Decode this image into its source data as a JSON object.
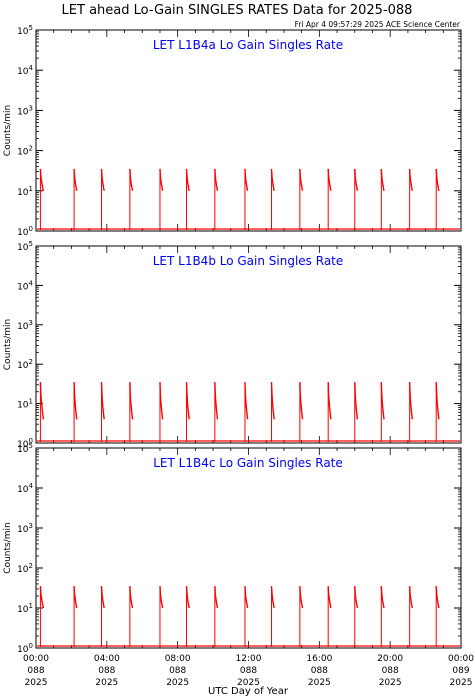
{
  "header": {
    "title": "LET ahead Lo-Gain SINGLES RATES Data for 2025-088",
    "subtitle": "Fri Apr  4 09:57:29 2025 ACE Science Center"
  },
  "colors": {
    "trace": "#ff0000",
    "panel_title": "#0000ff",
    "axes": "#000000"
  },
  "chart_data": [
    {
      "type": "line",
      "title": "LET L1B4a Lo Gain Singles Rate",
      "ylabel": "Counts/min",
      "xlabel": "",
      "yscale": "log",
      "ylim": [
        1,
        100000
      ],
      "xlim": [
        0,
        24
      ],
      "y_ticks": [
        "10^0",
        "10^1",
        "10^2",
        "10^3",
        "10^4",
        "10^5"
      ],
      "series": [
        {
          "x": [
            0.25,
            0.42,
            2.15,
            2.3,
            3.7,
            3.85,
            5.3,
            5.45,
            7.0,
            7.15,
            8.5,
            8.65,
            10.1,
            10.25,
            11.8,
            11.95,
            13.3,
            13.45,
            14.9,
            15.05,
            16.5,
            16.65,
            18.0,
            18.15,
            19.5,
            19.65,
            21.1,
            21.25,
            22.6,
            22.75
          ],
          "y": [
            35,
            10,
            35,
            10,
            35,
            10,
            35,
            10,
            35,
            10,
            35,
            10,
            35,
            10,
            35,
            10,
            35,
            10,
            35,
            10,
            35,
            10,
            35,
            10,
            35,
            10,
            35,
            10,
            35,
            10
          ]
        }
      ]
    },
    {
      "type": "line",
      "title": "LET L1B4b Lo Gain Singles Rate",
      "ylabel": "Counts/min",
      "xlabel": "",
      "yscale": "log",
      "ylim": [
        1,
        100000
      ],
      "xlim": [
        0,
        24
      ],
      "y_ticks": [
        "10^0",
        "10^1",
        "10^2",
        "10^3",
        "10^4",
        "10^5"
      ],
      "series": [
        {
          "x": [
            0.25,
            0.42,
            2.15,
            2.3,
            3.7,
            3.85,
            5.3,
            5.45,
            7.0,
            7.15,
            8.5,
            8.65,
            10.1,
            10.25,
            11.8,
            11.95,
            13.3,
            13.45,
            14.9,
            15.05,
            16.5,
            16.65,
            18.0,
            18.15,
            19.5,
            19.65,
            21.1,
            21.25,
            22.6,
            22.75
          ],
          "y": [
            35,
            4,
            35,
            4,
            35,
            4,
            35,
            4,
            35,
            4,
            35,
            4,
            35,
            4,
            35,
            4,
            35,
            4,
            35,
            4,
            35,
            4,
            35,
            4,
            35,
            4,
            35,
            4,
            35,
            4
          ]
        }
      ]
    },
    {
      "type": "line",
      "title": "LET L1B4c Lo Gain Singles Rate",
      "ylabel": "Counts/min",
      "xlabel": "UTC Day of Year",
      "yscale": "log",
      "ylim": [
        1,
        100000
      ],
      "xlim": [
        0,
        24
      ],
      "y_ticks": [
        "10^0",
        "10^1",
        "10^2",
        "10^3",
        "10^4",
        "10^5"
      ],
      "x_ticks": [
        {
          "time": "00:00",
          "doy": "088",
          "year": "2025"
        },
        {
          "time": "04:00",
          "doy": "088",
          "year": "2025"
        },
        {
          "time": "08:00",
          "doy": "088",
          "year": "2025"
        },
        {
          "time": "12:00",
          "doy": "088",
          "year": "2025"
        },
        {
          "time": "16:00",
          "doy": "088",
          "year": "2025"
        },
        {
          "time": "20:00",
          "doy": "088",
          "year": "2025"
        },
        {
          "time": "00:00",
          "doy": "089",
          "year": "2025"
        }
      ],
      "series": [
        {
          "x": [
            0.25,
            0.42,
            2.15,
            2.3,
            3.7,
            3.85,
            5.3,
            5.45,
            7.0,
            7.15,
            8.5,
            8.65,
            10.1,
            10.25,
            11.8,
            11.95,
            13.3,
            13.45,
            14.9,
            15.05,
            16.5,
            16.65,
            18.0,
            18.15,
            19.5,
            19.65,
            21.1,
            21.25,
            22.6,
            22.75
          ],
          "y": [
            35,
            10,
            35,
            10,
            35,
            10,
            35,
            10,
            35,
            10,
            35,
            10,
            35,
            10,
            35,
            10,
            35,
            10,
            35,
            10,
            35,
            10,
            35,
            10,
            35,
            10,
            35,
            10,
            35,
            10
          ]
        }
      ]
    }
  ]
}
